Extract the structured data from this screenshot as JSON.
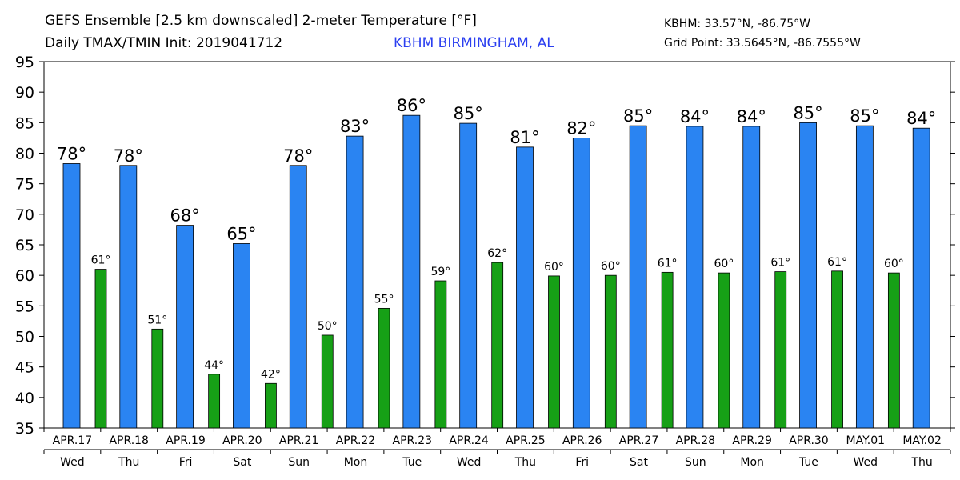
{
  "header": {
    "title_line1": "GEFS Ensemble [2.5 km downscaled] 2-meter Temperature [°F]",
    "title_line2": "Daily TMAX/TMIN Init: 2019041712",
    "station": "KBHM BIRMINGHAM, AL",
    "coord_line1": "KBHM: 33.57°N, -86.75°W",
    "coord_line2": "Grid Point: 33.5645°N, -86.7555°W"
  },
  "chart_data": {
    "type": "bar",
    "title": "GEFS Ensemble [2.5 km downscaled] 2-meter Temperature [°F]",
    "subtitle": "Daily TMAX/TMIN Init: 2019041712",
    "xlabel": "",
    "ylabel": "",
    "ylim": [
      35,
      95
    ],
    "yticks": [
      35,
      40,
      45,
      50,
      55,
      60,
      65,
      70,
      75,
      80,
      85,
      90,
      95
    ],
    "grid": false,
    "categories": [
      "APR.17",
      "APR.18",
      "APR.19",
      "APR.20",
      "APR.21",
      "APR.22",
      "APR.23",
      "APR.24",
      "APR.25",
      "APR.26",
      "APR.27",
      "APR.28",
      "APR.29",
      "APR.30",
      "MAY.01",
      "MAY.02"
    ],
    "weekdays": [
      "Wed",
      "Thu",
      "Fri",
      "Sat",
      "Sun",
      "Mon",
      "Tue",
      "Wed",
      "Thu",
      "Fri",
      "Sat",
      "Sun",
      "Mon",
      "Tue",
      "Wed",
      "Thu"
    ],
    "series": [
      {
        "color": "#2a84f2",
        "values": [
          78.3,
          78.0,
          68.2,
          65.2,
          78.0,
          82.8,
          86.2,
          84.9,
          81.0,
          82.5,
          84.5,
          84.4,
          84.4,
          85.0,
          84.5,
          84.1
        ],
        "labels": [
          "78°",
          "78°",
          "68°",
          "65°",
          "78°",
          "83°",
          "86°",
          "85°",
          "81°",
          "82°",
          "85°",
          "84°",
          "84°",
          "85°",
          "85°",
          "84°"
        ]
      },
      {
        "color": "#16a016",
        "values": [
          61.0,
          51.2,
          43.8,
          42.3,
          50.2,
          54.6,
          59.1,
          62.1,
          59.9,
          60.0,
          60.5,
          60.4,
          60.6,
          60.7,
          60.4,
          null
        ],
        "labels": [
          "61°",
          "51°",
          "44°",
          "42°",
          "50°",
          "55°",
          "59°",
          "62°",
          "60°",
          "60°",
          "61°",
          "60°",
          "61°",
          "61°",
          "60°",
          ""
        ]
      }
    ]
  }
}
